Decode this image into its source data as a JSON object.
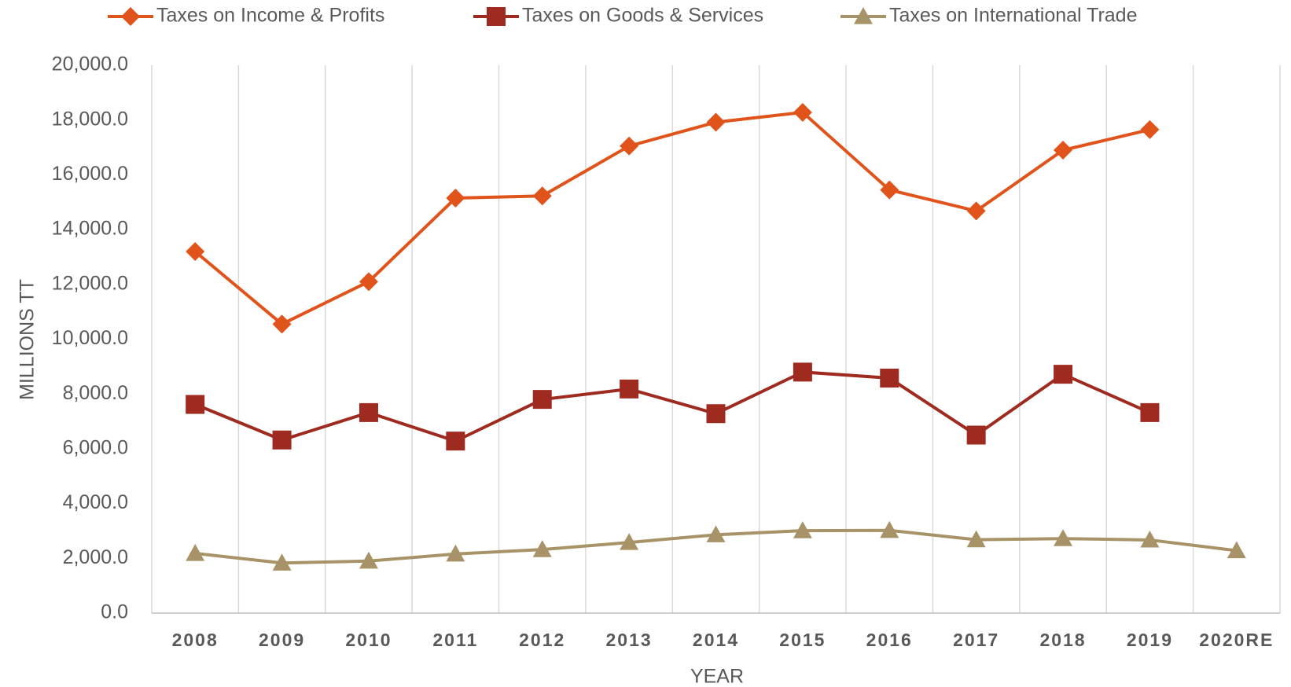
{
  "chart_data": {
    "type": "line",
    "x_label": "YEAR",
    "y_label": "MILLIONS TT",
    "categories": [
      "2008",
      "2009",
      "2010",
      "2011",
      "2012",
      "2013",
      "2014",
      "2015",
      "2016",
      "2017",
      "2018",
      "2019",
      "2020RE"
    ],
    "series": [
      {
        "name": "Taxes on Income & Profits",
        "color": "#e0541b",
        "marker": "diamond",
        "values": [
          13200,
          10550,
          12100,
          15150,
          15230,
          17050,
          17920,
          18280,
          15450,
          14680,
          16900,
          17650,
          null
        ]
      },
      {
        "name": "Taxes on Goods & Services",
        "color": "#9e2a20",
        "marker": "square",
        "values": [
          7620,
          6320,
          7320,
          6280,
          7800,
          8180,
          7280,
          8800,
          8580,
          6500,
          8720,
          7320,
          null
        ]
      },
      {
        "name": "Taxes on International Trade",
        "color": "#a89368",
        "marker": "triangle",
        "values": [
          2180,
          1830,
          1900,
          2160,
          2320,
          2580,
          2860,
          3010,
          3020,
          2680,
          2720,
          2670,
          2280
        ]
      }
    ],
    "ylim": [
      0,
      20000
    ],
    "yticks": [
      {
        "value": 0,
        "label": "0.0"
      },
      {
        "value": 2000,
        "label": "2,000.0"
      },
      {
        "value": 4000,
        "label": "4,000.0"
      },
      {
        "value": 6000,
        "label": "6,000.0"
      },
      {
        "value": 8000,
        "label": "8,000.0"
      },
      {
        "value": 10000,
        "label": "10,000.0"
      },
      {
        "value": 12000,
        "label": "12,000.0"
      },
      {
        "value": 14000,
        "label": "14,000.0"
      },
      {
        "value": 16000,
        "label": "16,000.0"
      },
      {
        "value": 18000,
        "label": "18,000.0"
      },
      {
        "value": 20000,
        "label": "20,000.0"
      }
    ],
    "grid": false,
    "legend": "top"
  }
}
